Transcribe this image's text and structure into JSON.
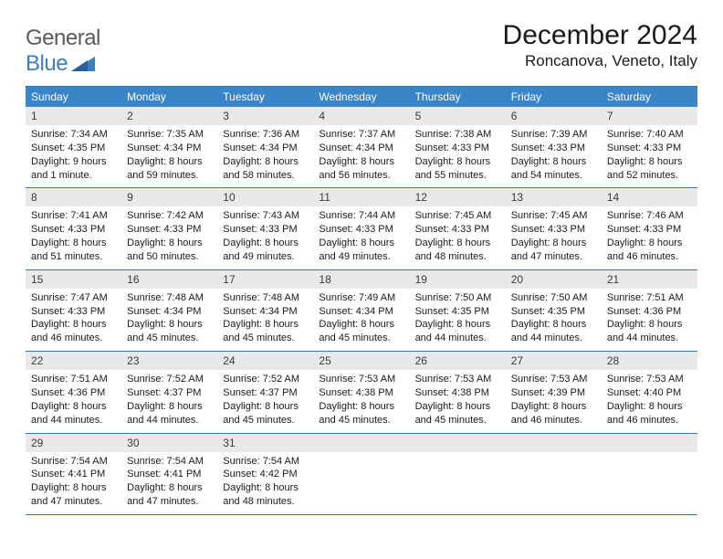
{
  "logo": {
    "general": "General",
    "blue": "Blue"
  },
  "title": "December 2024",
  "location": "Roncanova, Veneto, Italy",
  "colors": {
    "header_bg": "#3a85c8",
    "border": "#2b7cc0",
    "daynum_bg": "#e9e9e9",
    "logo_gray": "#5a5a5a",
    "logo_blue": "#3a7fc4"
  },
  "weekdays": [
    "Sunday",
    "Monday",
    "Tuesday",
    "Wednesday",
    "Thursday",
    "Friday",
    "Saturday"
  ],
  "weeks": [
    [
      {
        "n": "1",
        "sr": "Sunrise: 7:34 AM",
        "ss": "Sunset: 4:35 PM",
        "d1": "Daylight: 9 hours",
        "d2": "and 1 minute."
      },
      {
        "n": "2",
        "sr": "Sunrise: 7:35 AM",
        "ss": "Sunset: 4:34 PM",
        "d1": "Daylight: 8 hours",
        "d2": "and 59 minutes."
      },
      {
        "n": "3",
        "sr": "Sunrise: 7:36 AM",
        "ss": "Sunset: 4:34 PM",
        "d1": "Daylight: 8 hours",
        "d2": "and 58 minutes."
      },
      {
        "n": "4",
        "sr": "Sunrise: 7:37 AM",
        "ss": "Sunset: 4:34 PM",
        "d1": "Daylight: 8 hours",
        "d2": "and 56 minutes."
      },
      {
        "n": "5",
        "sr": "Sunrise: 7:38 AM",
        "ss": "Sunset: 4:33 PM",
        "d1": "Daylight: 8 hours",
        "d2": "and 55 minutes."
      },
      {
        "n": "6",
        "sr": "Sunrise: 7:39 AM",
        "ss": "Sunset: 4:33 PM",
        "d1": "Daylight: 8 hours",
        "d2": "and 54 minutes."
      },
      {
        "n": "7",
        "sr": "Sunrise: 7:40 AM",
        "ss": "Sunset: 4:33 PM",
        "d1": "Daylight: 8 hours",
        "d2": "and 52 minutes."
      }
    ],
    [
      {
        "n": "8",
        "sr": "Sunrise: 7:41 AM",
        "ss": "Sunset: 4:33 PM",
        "d1": "Daylight: 8 hours",
        "d2": "and 51 minutes."
      },
      {
        "n": "9",
        "sr": "Sunrise: 7:42 AM",
        "ss": "Sunset: 4:33 PM",
        "d1": "Daylight: 8 hours",
        "d2": "and 50 minutes."
      },
      {
        "n": "10",
        "sr": "Sunrise: 7:43 AM",
        "ss": "Sunset: 4:33 PM",
        "d1": "Daylight: 8 hours",
        "d2": "and 49 minutes."
      },
      {
        "n": "11",
        "sr": "Sunrise: 7:44 AM",
        "ss": "Sunset: 4:33 PM",
        "d1": "Daylight: 8 hours",
        "d2": "and 49 minutes."
      },
      {
        "n": "12",
        "sr": "Sunrise: 7:45 AM",
        "ss": "Sunset: 4:33 PM",
        "d1": "Daylight: 8 hours",
        "d2": "and 48 minutes."
      },
      {
        "n": "13",
        "sr": "Sunrise: 7:45 AM",
        "ss": "Sunset: 4:33 PM",
        "d1": "Daylight: 8 hours",
        "d2": "and 47 minutes."
      },
      {
        "n": "14",
        "sr": "Sunrise: 7:46 AM",
        "ss": "Sunset: 4:33 PM",
        "d1": "Daylight: 8 hours",
        "d2": "and 46 minutes."
      }
    ],
    [
      {
        "n": "15",
        "sr": "Sunrise: 7:47 AM",
        "ss": "Sunset: 4:33 PM",
        "d1": "Daylight: 8 hours",
        "d2": "and 46 minutes."
      },
      {
        "n": "16",
        "sr": "Sunrise: 7:48 AM",
        "ss": "Sunset: 4:34 PM",
        "d1": "Daylight: 8 hours",
        "d2": "and 45 minutes."
      },
      {
        "n": "17",
        "sr": "Sunrise: 7:48 AM",
        "ss": "Sunset: 4:34 PM",
        "d1": "Daylight: 8 hours",
        "d2": "and 45 minutes."
      },
      {
        "n": "18",
        "sr": "Sunrise: 7:49 AM",
        "ss": "Sunset: 4:34 PM",
        "d1": "Daylight: 8 hours",
        "d2": "and 45 minutes."
      },
      {
        "n": "19",
        "sr": "Sunrise: 7:50 AM",
        "ss": "Sunset: 4:35 PM",
        "d1": "Daylight: 8 hours",
        "d2": "and 44 minutes."
      },
      {
        "n": "20",
        "sr": "Sunrise: 7:50 AM",
        "ss": "Sunset: 4:35 PM",
        "d1": "Daylight: 8 hours",
        "d2": "and 44 minutes."
      },
      {
        "n": "21",
        "sr": "Sunrise: 7:51 AM",
        "ss": "Sunset: 4:36 PM",
        "d1": "Daylight: 8 hours",
        "d2": "and 44 minutes."
      }
    ],
    [
      {
        "n": "22",
        "sr": "Sunrise: 7:51 AM",
        "ss": "Sunset: 4:36 PM",
        "d1": "Daylight: 8 hours",
        "d2": "and 44 minutes."
      },
      {
        "n": "23",
        "sr": "Sunrise: 7:52 AM",
        "ss": "Sunset: 4:37 PM",
        "d1": "Daylight: 8 hours",
        "d2": "and 44 minutes."
      },
      {
        "n": "24",
        "sr": "Sunrise: 7:52 AM",
        "ss": "Sunset: 4:37 PM",
        "d1": "Daylight: 8 hours",
        "d2": "and 45 minutes."
      },
      {
        "n": "25",
        "sr": "Sunrise: 7:53 AM",
        "ss": "Sunset: 4:38 PM",
        "d1": "Daylight: 8 hours",
        "d2": "and 45 minutes."
      },
      {
        "n": "26",
        "sr": "Sunrise: 7:53 AM",
        "ss": "Sunset: 4:38 PM",
        "d1": "Daylight: 8 hours",
        "d2": "and 45 minutes."
      },
      {
        "n": "27",
        "sr": "Sunrise: 7:53 AM",
        "ss": "Sunset: 4:39 PM",
        "d1": "Daylight: 8 hours",
        "d2": "and 46 minutes."
      },
      {
        "n": "28",
        "sr": "Sunrise: 7:53 AM",
        "ss": "Sunset: 4:40 PM",
        "d1": "Daylight: 8 hours",
        "d2": "and 46 minutes."
      }
    ],
    [
      {
        "n": "29",
        "sr": "Sunrise: 7:54 AM",
        "ss": "Sunset: 4:41 PM",
        "d1": "Daylight: 8 hours",
        "d2": "and 47 minutes."
      },
      {
        "n": "30",
        "sr": "Sunrise: 7:54 AM",
        "ss": "Sunset: 4:41 PM",
        "d1": "Daylight: 8 hours",
        "d2": "and 47 minutes."
      },
      {
        "n": "31",
        "sr": "Sunrise: 7:54 AM",
        "ss": "Sunset: 4:42 PM",
        "d1": "Daylight: 8 hours",
        "d2": "and 48 minutes."
      },
      {
        "empty": true
      },
      {
        "empty": true
      },
      {
        "empty": true
      },
      {
        "empty": true
      }
    ]
  ]
}
